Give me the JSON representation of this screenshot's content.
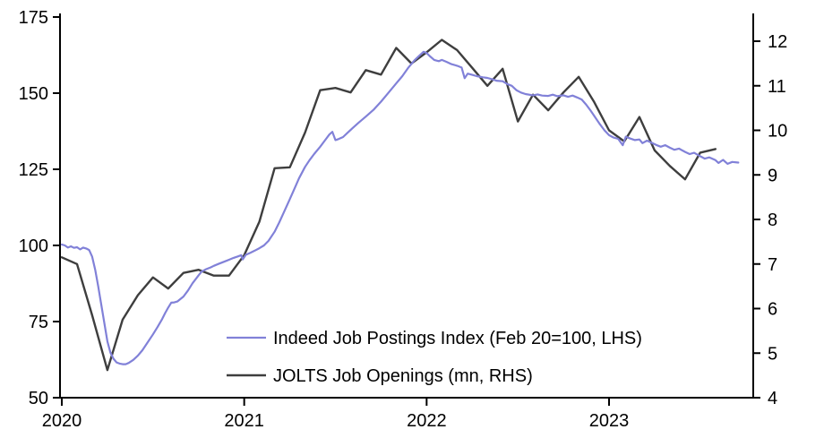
{
  "chart_data": {
    "type": "line",
    "title": "",
    "background": "#ffffff",
    "grid": false,
    "legend_position": "inside lower-center",
    "x_axis": {
      "tick_labels": [
        "2020",
        "2021",
        "2022",
        "2023"
      ],
      "tick_months": [
        0,
        12,
        24,
        36
      ]
    },
    "left_axis": {
      "label": "Indeed Job Postings Index (Feb 20=100)",
      "ticks": [
        175,
        150,
        125,
        100,
        75,
        50
      ],
      "range": [
        50,
        175
      ]
    },
    "right_axis": {
      "label": "JOLTS Job Openings (mn)",
      "ticks": [
        12,
        11,
        10,
        9,
        8,
        7,
        6,
        5,
        4
      ],
      "range": [
        4,
        12
      ]
    },
    "series": [
      {
        "name": "Indeed Job Postings Index (Feb 20=100, LHS)",
        "axis": "left",
        "color": "#8181D8",
        "stroke_width": 2.2,
        "points_unit": "[months since Jan 2020, index value]",
        "points": [
          [
            0,
            100.3
          ],
          [
            0.2,
            100.0
          ],
          [
            0.4,
            99.3
          ],
          [
            0.6,
            99.7
          ],
          [
            0.8,
            99.2
          ],
          [
            1.0,
            99.4
          ],
          [
            1.2,
            98.7
          ],
          [
            1.4,
            99.3
          ],
          [
            1.6,
            99.0
          ],
          [
            1.8,
            98.5
          ],
          [
            2.0,
            96.3
          ],
          [
            2.2,
            92.0
          ],
          [
            2.4,
            86.5
          ],
          [
            2.6,
            80.5
          ],
          [
            2.8,
            74.5
          ],
          [
            3.0,
            68.5
          ],
          [
            3.2,
            64.8
          ],
          [
            3.4,
            62.8
          ],
          [
            3.6,
            61.6
          ],
          [
            3.8,
            61.2
          ],
          [
            4.0,
            61.0
          ],
          [
            4.2,
            61.0
          ],
          [
            4.4,
            61.4
          ],
          [
            4.7,
            62.4
          ],
          [
            5.0,
            63.8
          ],
          [
            5.3,
            65.6
          ],
          [
            5.6,
            67.8
          ],
          [
            6.0,
            70.8
          ],
          [
            6.3,
            73.2
          ],
          [
            6.6,
            75.8
          ],
          [
            6.8,
            77.8
          ],
          [
            7.0,
            79.6
          ],
          [
            7.2,
            81.2
          ],
          [
            7.4,
            81.3
          ],
          [
            7.6,
            81.6
          ],
          [
            8.0,
            83.2
          ],
          [
            8.3,
            85.2
          ],
          [
            8.6,
            87.6
          ],
          [
            9.0,
            90.2
          ],
          [
            9.2,
            91.4
          ],
          [
            9.5,
            92.2
          ],
          [
            9.8,
            92.8
          ],
          [
            10.0,
            93.3
          ],
          [
            10.3,
            93.9
          ],
          [
            10.6,
            94.5
          ],
          [
            11.0,
            95.3
          ],
          [
            11.3,
            95.9
          ],
          [
            11.6,
            96.4
          ],
          [
            11.8,
            96.8
          ],
          [
            11.9,
            95.4
          ],
          [
            12.1,
            96.9
          ],
          [
            12.4,
            97.6
          ],
          [
            12.7,
            98.3
          ],
          [
            13.0,
            99.1
          ],
          [
            13.3,
            100.0
          ],
          [
            13.6,
            101.5
          ],
          [
            14.0,
            104.5
          ],
          [
            14.3,
            107.5
          ],
          [
            14.6,
            110.8
          ],
          [
            15.0,
            115.2
          ],
          [
            15.3,
            118.6
          ],
          [
            15.6,
            122.0
          ],
          [
            16.0,
            125.8
          ],
          [
            16.3,
            128.0
          ],
          [
            16.6,
            130.0
          ],
          [
            17.0,
            132.4
          ],
          [
            17.3,
            134.4
          ],
          [
            17.6,
            136.4
          ],
          [
            17.8,
            137.3
          ],
          [
            18.0,
            134.6
          ],
          [
            18.2,
            134.9
          ],
          [
            18.5,
            135.6
          ],
          [
            18.8,
            137.0
          ],
          [
            19.1,
            138.4
          ],
          [
            19.5,
            140.2
          ],
          [
            20.0,
            142.3
          ],
          [
            20.5,
            144.5
          ],
          [
            21.0,
            147.2
          ],
          [
            21.5,
            150.2
          ],
          [
            22.0,
            153.2
          ],
          [
            22.4,
            155.6
          ],
          [
            22.8,
            158.4
          ],
          [
            23.2,
            160.8
          ],
          [
            23.5,
            162.2
          ],
          [
            23.8,
            163.6
          ],
          [
            24.0,
            163.2
          ],
          [
            24.2,
            162.2
          ],
          [
            24.5,
            160.9
          ],
          [
            24.8,
            160.5
          ],
          [
            25.0,
            160.9
          ],
          [
            25.3,
            160.3
          ],
          [
            25.6,
            159.6
          ],
          [
            26.0,
            159.0
          ],
          [
            26.3,
            158.4
          ],
          [
            26.5,
            154.9
          ],
          [
            26.7,
            156.4
          ],
          [
            27.0,
            156.0
          ],
          [
            27.3,
            155.6
          ],
          [
            27.7,
            155.2
          ],
          [
            28.0,
            155.0
          ],
          [
            28.3,
            154.6
          ],
          [
            28.6,
            154.1
          ],
          [
            29.0,
            153.9
          ],
          [
            29.3,
            153.0
          ],
          [
            29.6,
            152.4
          ],
          [
            29.9,
            151.0
          ],
          [
            30.2,
            150.2
          ],
          [
            30.5,
            149.7
          ],
          [
            31.0,
            149.3
          ],
          [
            31.3,
            149.6
          ],
          [
            31.6,
            149.2
          ],
          [
            32.0,
            149.1
          ],
          [
            32.3,
            149.5
          ],
          [
            32.6,
            149.0
          ],
          [
            33.0,
            149.3
          ],
          [
            33.3,
            148.8
          ],
          [
            33.6,
            149.2
          ],
          [
            33.9,
            148.6
          ],
          [
            34.2,
            147.9
          ],
          [
            34.5,
            146.2
          ],
          [
            34.8,
            144.2
          ],
          [
            35.1,
            142.0
          ],
          [
            35.4,
            139.8
          ],
          [
            35.7,
            137.8
          ],
          [
            36.0,
            136.2
          ],
          [
            36.3,
            135.4
          ],
          [
            36.6,
            135.0
          ],
          [
            36.9,
            132.9
          ],
          [
            37.1,
            135.7
          ],
          [
            37.4,
            135.1
          ],
          [
            37.7,
            134.6
          ],
          [
            38.0,
            134.8
          ],
          [
            38.2,
            133.6
          ],
          [
            38.5,
            134.4
          ],
          [
            38.8,
            133.7
          ],
          [
            39.1,
            133.0
          ],
          [
            39.4,
            132.4
          ],
          [
            39.7,
            132.9
          ],
          [
            40.0,
            132.1
          ],
          [
            40.3,
            131.4
          ],
          [
            40.6,
            131.8
          ],
          [
            41.0,
            130.7
          ],
          [
            41.3,
            130.0
          ],
          [
            41.6,
            130.4
          ],
          [
            42.0,
            129.3
          ],
          [
            42.3,
            128.5
          ],
          [
            42.6,
            128.9
          ],
          [
            43.0,
            128.0
          ],
          [
            43.2,
            127.1
          ],
          [
            43.5,
            128.1
          ],
          [
            43.8,
            126.8
          ],
          [
            44.1,
            127.4
          ],
          [
            44.5,
            127.2
          ]
        ]
      },
      {
        "name": "JOLTS Job Openings (mn, RHS)",
        "axis": "right",
        "color": "#3E3E3E",
        "stroke_width": 2.4,
        "start_month": "2020-01",
        "frequency": "monthly",
        "values": [
          7.15,
          7.0,
          5.85,
          4.62,
          5.75,
          6.3,
          6.7,
          6.45,
          6.8,
          6.87,
          6.74,
          6.74,
          7.2,
          7.95,
          9.15,
          9.17,
          9.95,
          10.9,
          10.95,
          10.85,
          11.35,
          11.25,
          11.85,
          11.5,
          11.75,
          12.03,
          11.8,
          11.4,
          11.0,
          11.38,
          10.2,
          10.8,
          10.45,
          10.85,
          11.2,
          10.65,
          10.0,
          9.75,
          10.3,
          9.55,
          9.2,
          8.9,
          9.5,
          9.58
        ]
      }
    ]
  }
}
